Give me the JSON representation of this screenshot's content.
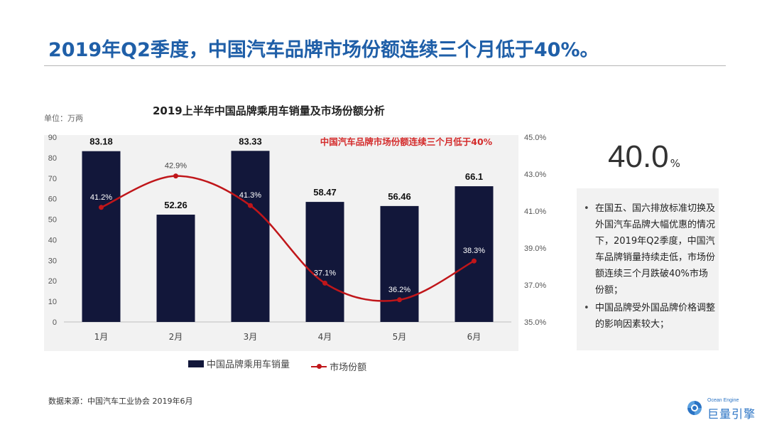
{
  "slide": {
    "title": "2019年Q2季度，中国汽车品牌市场份额连续三个月低于40%。",
    "unit_label": "单位：万两",
    "source": "数据来源：中国汽车工业协会 2019年6月"
  },
  "highlight": {
    "value": "40.0",
    "unit": "%"
  },
  "bullets": [
    "在国五、国六排放标准切换及外国汽车品牌大幅优惠的情况下，2019年Q2季度，中国汽车品牌销量持续走低，市场份额连续三个月跌破40%市场份额；",
    "中国品牌受外国品牌价格调整的影响因素较大；"
  ],
  "logo": {
    "small_text": "Ocean Engine",
    "big_text": "巨量引擎"
  },
  "colors": {
    "title": "#1f5fa8",
    "bar": "#12173a",
    "line": "#c0161a",
    "annotation": "#d42b2b",
    "panel": "#f2f2f2"
  },
  "chart_data": {
    "type": "bar",
    "title": "2019上半年中国品牌乘用车销量及市场份额分析",
    "annotation": "中国汽车品牌市场份额连续三个月低于40%",
    "categories": [
      "1月",
      "2月",
      "3月",
      "4月",
      "5月",
      "6月"
    ],
    "series": [
      {
        "name": "中国品牌乘用车销量",
        "type": "bar",
        "axis": "left",
        "values": [
          83.18,
          52.26,
          83.33,
          58.47,
          56.46,
          66.1
        ],
        "labels": [
          "83.18",
          "52.26",
          "83.33",
          "58.47",
          "56.46",
          "66.1"
        ]
      },
      {
        "name": "市场份额",
        "type": "line",
        "axis": "right",
        "values": [
          41.2,
          42.9,
          41.3,
          37.1,
          36.2,
          38.3
        ],
        "labels": [
          "41.2%",
          "42.9%",
          "41.3%",
          "37.1%",
          "36.2%",
          "38.3%"
        ]
      }
    ],
    "y_left": {
      "min": 0,
      "max": 90,
      "ticks": [
        "0",
        "10",
        "20",
        "30",
        "40",
        "50",
        "60",
        "70",
        "80",
        "90"
      ]
    },
    "y_right": {
      "min": 35,
      "max": 45,
      "ticks": [
        "35.0%",
        "37.0%",
        "39.0%",
        "41.0%",
        "43.0%",
        "45.0%"
      ]
    },
    "legend_position": "bottom",
    "grid": false
  }
}
